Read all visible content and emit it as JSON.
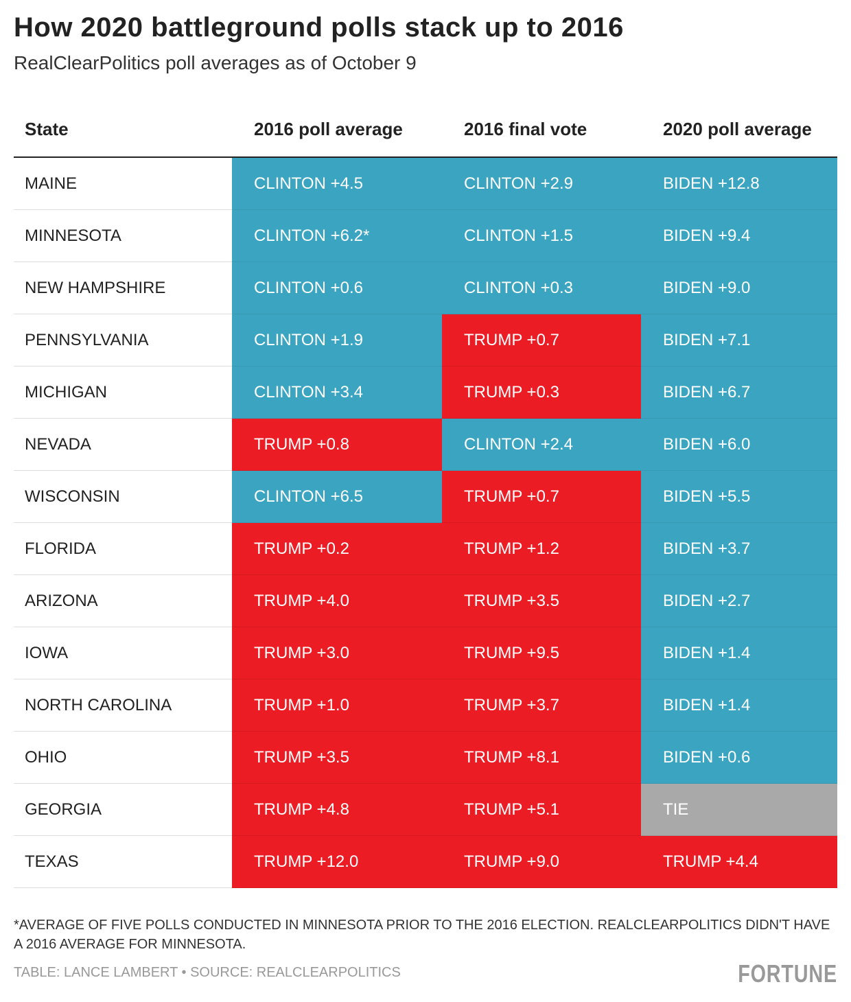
{
  "header": {
    "title": "How 2020 battleground polls stack up to 2016",
    "subtitle": "RealClearPolitics poll averages as of October 9"
  },
  "table": {
    "columns": [
      "State",
      "2016 poll average",
      "2016 final vote",
      "2020 poll average"
    ],
    "rows": [
      {
        "state": "MAINE",
        "cells": [
          {
            "text": "CLINTON +4.5",
            "color": "#3ba5c1"
          },
          {
            "text": "CLINTON +2.9",
            "color": "#3ba5c1"
          },
          {
            "text": "BIDEN +12.8",
            "color": "#3ba5c1"
          }
        ]
      },
      {
        "state": "MINNESOTA",
        "cells": [
          {
            "text": "CLINTON +6.2*",
            "color": "#3ba5c1"
          },
          {
            "text": "CLINTON +1.5",
            "color": "#3ba5c1"
          },
          {
            "text": "BIDEN +9.4",
            "color": "#3ba5c1"
          }
        ]
      },
      {
        "state": "NEW HAMPSHIRE",
        "cells": [
          {
            "text": "CLINTON +0.6",
            "color": "#3ba5c1"
          },
          {
            "text": "CLINTON +0.3",
            "color": "#3ba5c1"
          },
          {
            "text": "BIDEN +9.0",
            "color": "#3ba5c1"
          }
        ]
      },
      {
        "state": "PENNSYLVANIA",
        "cells": [
          {
            "text": "CLINTON +1.9",
            "color": "#3ba5c1"
          },
          {
            "text": "TRUMP +0.7",
            "color": "#ec1c24"
          },
          {
            "text": "BIDEN +7.1",
            "color": "#3ba5c1"
          }
        ]
      },
      {
        "state": "MICHIGAN",
        "cells": [
          {
            "text": "CLINTON +3.4",
            "color": "#3ba5c1"
          },
          {
            "text": "TRUMP +0.3",
            "color": "#ec1c24"
          },
          {
            "text": "BIDEN +6.7",
            "color": "#3ba5c1"
          }
        ]
      },
      {
        "state": "NEVADA",
        "cells": [
          {
            "text": "TRUMP +0.8",
            "color": "#ec1c24"
          },
          {
            "text": "CLINTON +2.4",
            "color": "#3ba5c1"
          },
          {
            "text": "BIDEN +6.0",
            "color": "#3ba5c1"
          }
        ]
      },
      {
        "state": "WISCONSIN",
        "cells": [
          {
            "text": "CLINTON +6.5",
            "color": "#3ba5c1"
          },
          {
            "text": "TRUMP +0.7",
            "color": "#ec1c24"
          },
          {
            "text": "BIDEN +5.5",
            "color": "#3ba5c1"
          }
        ]
      },
      {
        "state": "FLORIDA",
        "cells": [
          {
            "text": "TRUMP +0.2",
            "color": "#ec1c24"
          },
          {
            "text": "TRUMP +1.2",
            "color": "#ec1c24"
          },
          {
            "text": "BIDEN +3.7",
            "color": "#3ba5c1"
          }
        ]
      },
      {
        "state": "ARIZONA",
        "cells": [
          {
            "text": "TRUMP +4.0",
            "color": "#ec1c24"
          },
          {
            "text": "TRUMP +3.5",
            "color": "#ec1c24"
          },
          {
            "text": "BIDEN +2.7",
            "color": "#3ba5c1"
          }
        ]
      },
      {
        "state": "IOWA",
        "cells": [
          {
            "text": "TRUMP +3.0",
            "color": "#ec1c24"
          },
          {
            "text": "TRUMP +9.5",
            "color": "#ec1c24"
          },
          {
            "text": "BIDEN +1.4",
            "color": "#3ba5c1"
          }
        ]
      },
      {
        "state": "NORTH CAROLINA",
        "cells": [
          {
            "text": "TRUMP +1.0",
            "color": "#ec1c24"
          },
          {
            "text": "TRUMP +3.7",
            "color": "#ec1c24"
          },
          {
            "text": "BIDEN +1.4",
            "color": "#3ba5c1"
          }
        ]
      },
      {
        "state": "OHIO",
        "cells": [
          {
            "text": "TRUMP +3.5",
            "color": "#ec1c24"
          },
          {
            "text": "TRUMP +8.1",
            "color": "#ec1c24"
          },
          {
            "text": "BIDEN +0.6",
            "color": "#3ba5c1"
          }
        ]
      },
      {
        "state": "GEORGIA",
        "cells": [
          {
            "text": "TRUMP +4.8",
            "color": "#ec1c24"
          },
          {
            "text": "TRUMP +5.1",
            "color": "#ec1c24"
          },
          {
            "text": "TIE",
            "color": "#a9a9a9"
          }
        ]
      },
      {
        "state": "TEXAS",
        "cells": [
          {
            "text": "TRUMP +12.0",
            "color": "#ec1c24"
          },
          {
            "text": "TRUMP +9.0",
            "color": "#ec1c24"
          },
          {
            "text": "TRUMP +4.4",
            "color": "#ec1c24"
          }
        ]
      }
    ]
  },
  "footer": {
    "note": "*AVERAGE OF FIVE POLLS CONDUCTED IN MINNESOTA PRIOR TO THE 2016 ELECTION. REALCLEARPOLITICS DIDN'T HAVE A 2016 AVERAGE FOR MINNESOTA.",
    "source": "TABLE: LANCE LAMBERT • SOURCE: REALCLEARPOLITICS",
    "logo": "FORTUNE"
  }
}
